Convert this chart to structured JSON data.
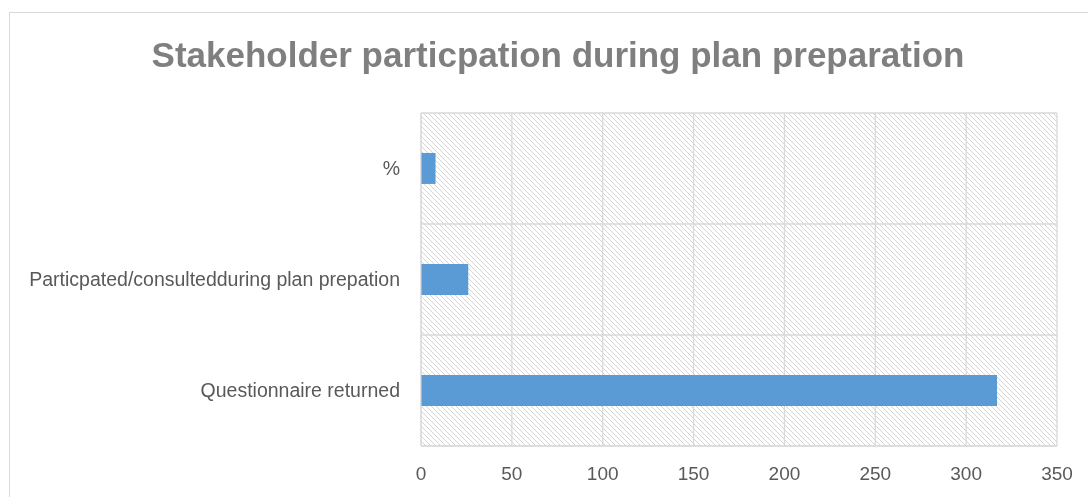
{
  "chart_data": {
    "type": "bar",
    "orientation": "horizontal",
    "title": "Stakeholder particpation during plan preparation",
    "categories": [
      "%",
      "Particpated/consultedduring plan prepation",
      "Questionnaire returned"
    ],
    "values": [
      8,
      26,
      317
    ],
    "color": "#5b9bd5",
    "xlim": [
      0,
      350
    ],
    "xticks": [
      0,
      50,
      100,
      150,
      200,
      250,
      300,
      350
    ],
    "grid": true
  }
}
